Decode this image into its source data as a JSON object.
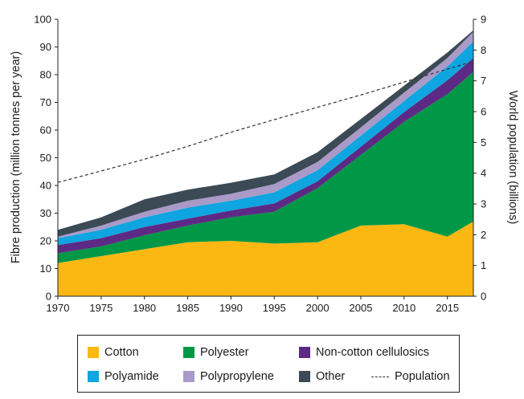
{
  "chart_data": {
    "type": "area",
    "stacked": true,
    "x": [
      1970,
      1975,
      1980,
      1985,
      1990,
      1995,
      2000,
      2005,
      2010,
      2015,
      2018
    ],
    "series": [
      {
        "name": "Cotton",
        "color": "#fbb812",
        "values": [
          12,
          14.5,
          17,
          19.5,
          20,
          19,
          19.5,
          25.5,
          26,
          21.5,
          27
        ]
      },
      {
        "name": "Polyester",
        "color": "#009846",
        "values": [
          3.5,
          3.5,
          5,
          6,
          8.5,
          11.5,
          19.5,
          25.5,
          37,
          51.5,
          54
        ]
      },
      {
        "name": "Non-cotton cellulosics",
        "color": "#5c2a85",
        "values": [
          3,
          3,
          3,
          2.5,
          2.5,
          3,
          2.5,
          3,
          3.5,
          5,
          5
        ]
      },
      {
        "name": "Polyamide",
        "color": "#0ea5e0",
        "values": [
          2.5,
          3,
          3.5,
          4,
          3.5,
          4,
          4,
          4,
          4,
          5,
          6
        ]
      },
      {
        "name": "Polypropylene",
        "color": "#a99ac8",
        "values": [
          0.5,
          1.5,
          2,
          2.5,
          2.5,
          3,
          3,
          3,
          3,
          3,
          3.5
        ]
      },
      {
        "name": "Other",
        "color": "#3b4a55",
        "values": [
          2.5,
          3,
          4.5,
          4,
          4,
          3.5,
          3.5,
          3,
          2.5,
          2,
          0.5
        ]
      }
    ],
    "population": {
      "name": "Population",
      "x": [
        1970,
        1975,
        1980,
        1985,
        1990,
        1995,
        2000,
        2005,
        2010,
        2015,
        2018
      ],
      "values": [
        3.7,
        4.07,
        4.45,
        4.87,
        5.33,
        5.74,
        6.14,
        6.54,
        6.96,
        7.38,
        7.63
      ]
    },
    "xlim": [
      1970,
      2018
    ],
    "ylim": [
      0,
      100
    ],
    "y2lim": [
      0,
      9
    ],
    "xticks": [
      "1970",
      "1975",
      "1980",
      "1985",
      "1990",
      "1995",
      "2000",
      "2005",
      "2010",
      "2015"
    ],
    "yticks": [
      "0",
      "10",
      "20",
      "30",
      "40",
      "50",
      "60",
      "70",
      "80",
      "90",
      "100"
    ],
    "y2ticks": [
      "0",
      "1",
      "2",
      "3",
      "4",
      "5",
      "6",
      "7",
      "8",
      "9"
    ],
    "ylabel": "Fibre production (million tonnes per year)",
    "y2label": "World population (billions)",
    "xlabel": "",
    "title": "",
    "legend_position": "bottom"
  }
}
